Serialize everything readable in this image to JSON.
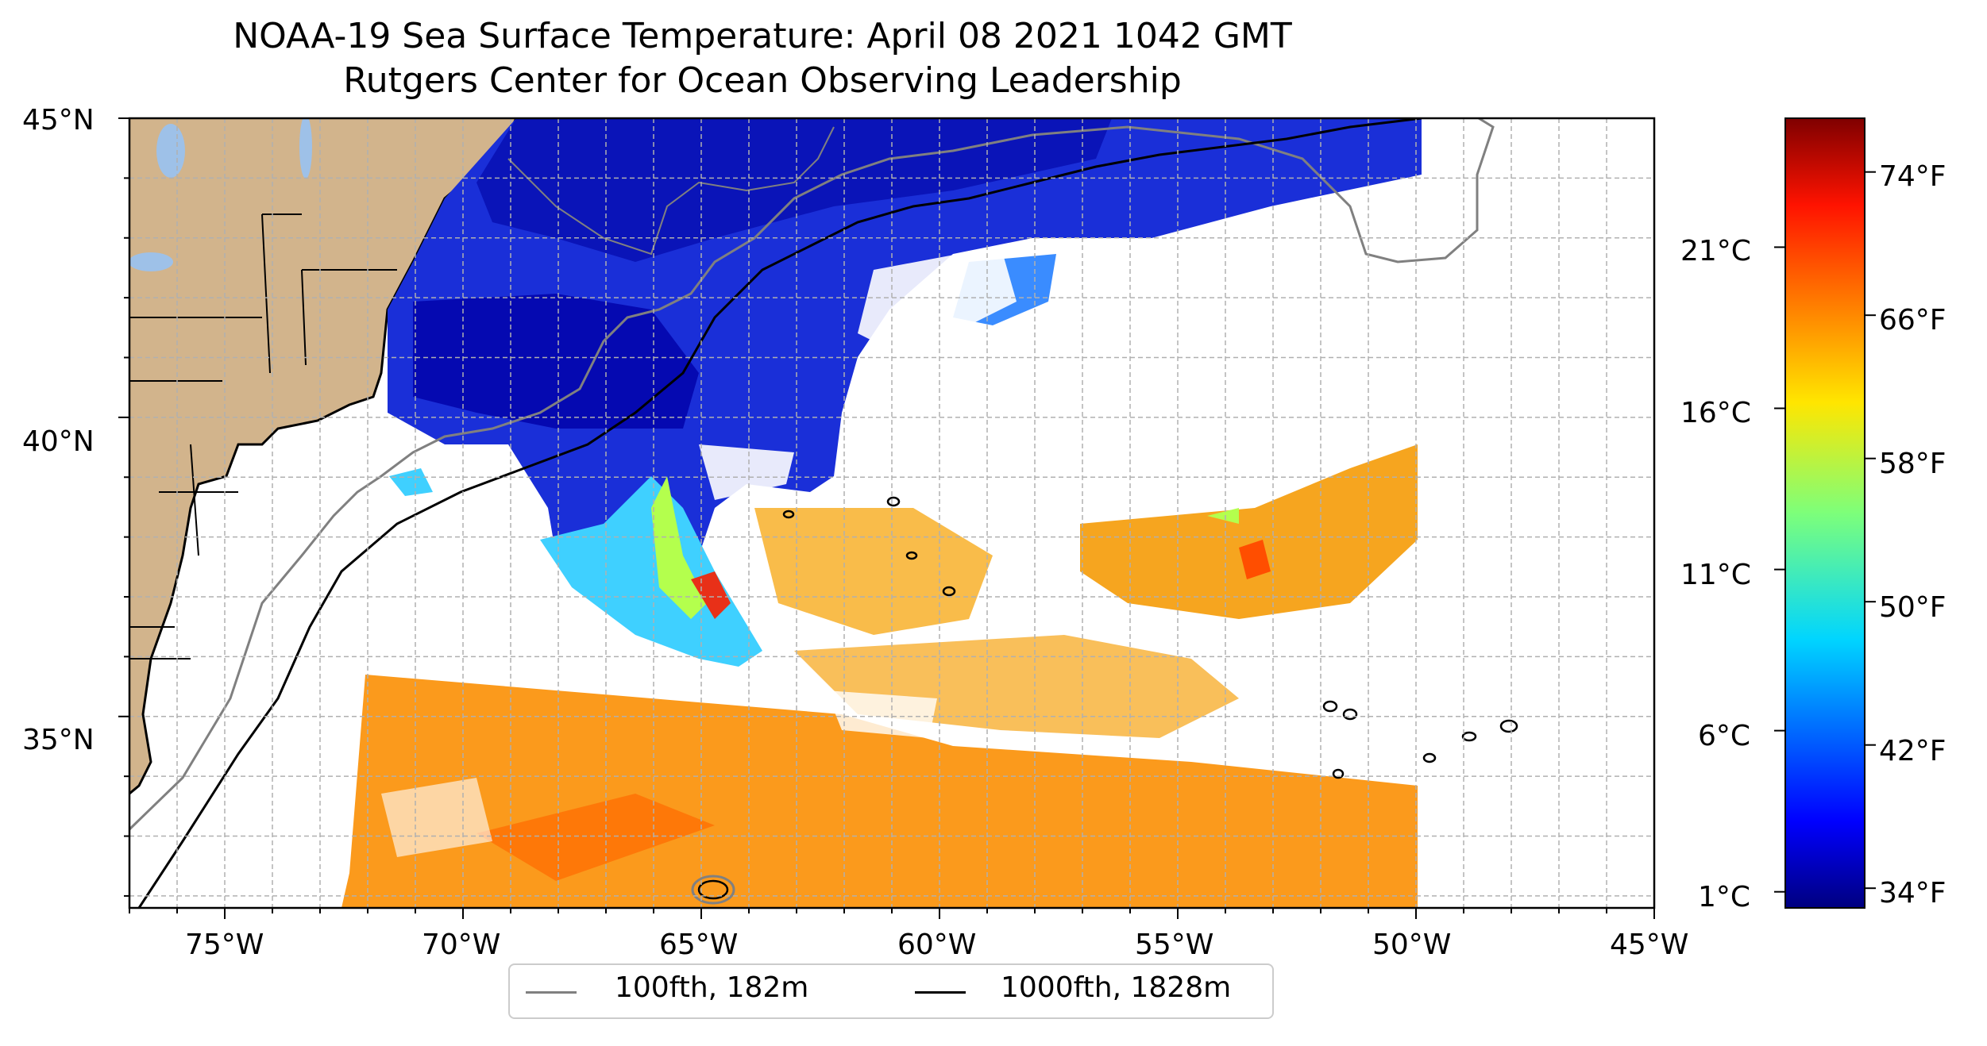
{
  "title": {
    "line1": "NOAA-19 Sea Surface Temperature: April 08 2021 1042 GMT",
    "line2": "Rutgers Center for Ocean Observing Leadership"
  },
  "map": {
    "lon_range": [
      -77,
      -45
    ],
    "lat_range": [
      31.8,
      45
    ],
    "lon_tick_labels": [
      "75°W",
      "70°W",
      "65°W",
      "60°W",
      "55°W",
      "50°W",
      "45°W"
    ],
    "lat_tick_labels": [
      "35°N",
      "40°N",
      "45°N"
    ],
    "grid": true,
    "colors": {
      "land": "#d2b48c",
      "lake": "#9ec1e8",
      "border": "#000000",
      "isobath_100": "#808080",
      "isobath_1000": "#000000",
      "grid": "#b0b0b0"
    }
  },
  "legend": {
    "items": [
      {
        "label": "100fth, 182m",
        "color": "#808080"
      },
      {
        "label": "1000fth, 1828m",
        "color": "#000000"
      }
    ]
  },
  "colorbar": {
    "colormap": "jet",
    "range_c": [
      0.5,
      25
    ],
    "celsius_labels": [
      "21°C",
      "16°C",
      "11°C",
      "6°C",
      "1°C"
    ],
    "fahrenheit_labels": [
      "74°F",
      "66°F",
      "58°F",
      "50°F",
      "42°F",
      "34°F"
    ]
  }
}
